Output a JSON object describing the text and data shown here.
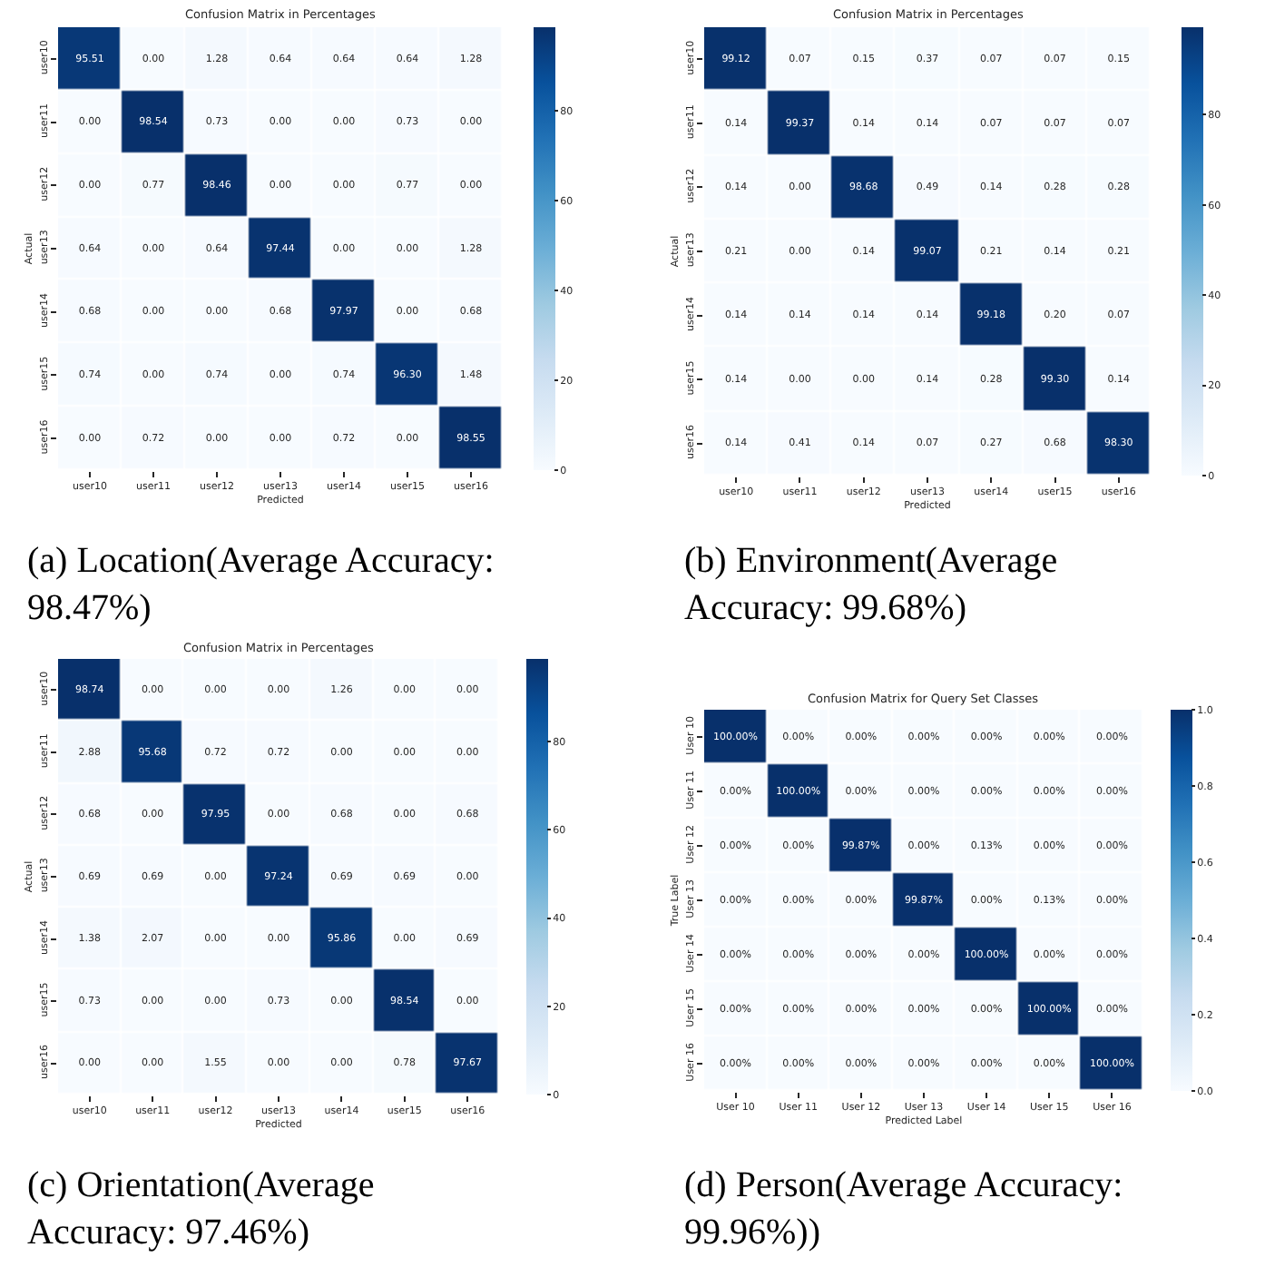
{
  "chart_data": [
    {
      "type": "heatmap",
      "title": "Confusion Matrix in Percentages",
      "xlabel": "Predicted",
      "ylabel": "Actual",
      "categories": [
        "user10",
        "user11",
        "user12",
        "user13",
        "user14",
        "user15",
        "user16"
      ],
      "y_categories": [
        "user10",
        "user11",
        "user12",
        "user13",
        "user14",
        "user15",
        "user16"
      ],
      "cells": [
        [
          95.51,
          0.0,
          1.28,
          0.64,
          0.64,
          0.64,
          1.28
        ],
        [
          0.0,
          98.54,
          0.73,
          0.0,
          0.0,
          0.73,
          0.0
        ],
        [
          0.0,
          0.77,
          98.46,
          0.0,
          0.0,
          0.77,
          0.0
        ],
        [
          0.64,
          0.0,
          0.64,
          97.44,
          0.0,
          0.0,
          1.28
        ],
        [
          0.68,
          0.0,
          0.0,
          0.68,
          97.97,
          0.0,
          0.68
        ],
        [
          0.74,
          0.0,
          0.74,
          0.0,
          0.74,
          96.3,
          1.48
        ],
        [
          0.0,
          0.72,
          0.0,
          0.0,
          0.72,
          0.0,
          98.55
        ]
      ],
      "cell_labels": [
        [
          "95.51",
          "0.00",
          "1.28",
          "0.64",
          "0.64",
          "0.64",
          "1.28"
        ],
        [
          "0.00",
          "98.54",
          "0.73",
          "0.00",
          "0.00",
          "0.73",
          "0.00"
        ],
        [
          "0.00",
          "0.77",
          "98.46",
          "0.00",
          "0.00",
          "0.77",
          "0.00"
        ],
        [
          "0.64",
          "0.00",
          "0.64",
          "97.44",
          "0.00",
          "0.00",
          "1.28"
        ],
        [
          "0.68",
          "0.00",
          "0.00",
          "0.68",
          "97.97",
          "0.00",
          "0.68"
        ],
        [
          "0.74",
          "0.00",
          "0.74",
          "0.00",
          "0.74",
          "96.30",
          "1.48"
        ],
        [
          "0.00",
          "0.72",
          "0.00",
          "0.00",
          "0.72",
          "0.00",
          "98.55"
        ]
      ],
      "clim": [
        0,
        98.55
      ],
      "cticks": [
        0,
        20,
        40,
        60,
        80
      ],
      "annotations": [
        "(a) Location(Average Accuracy: 98.47%)"
      ]
    },
    {
      "type": "heatmap",
      "title": "Confusion Matrix in Percentages",
      "xlabel": "Predicted",
      "ylabel": "Actual",
      "categories": [
        "user10",
        "user11",
        "user12",
        "user13",
        "user14",
        "user15",
        "user16"
      ],
      "y_categories": [
        "user10",
        "user11",
        "user12",
        "user13",
        "user14",
        "user15",
        "user16"
      ],
      "cells": [
        [
          99.12,
          0.07,
          0.15,
          0.37,
          0.07,
          0.07,
          0.15
        ],
        [
          0.14,
          99.37,
          0.14,
          0.14,
          0.07,
          0.07,
          0.07
        ],
        [
          0.14,
          0.0,
          98.68,
          0.49,
          0.14,
          0.28,
          0.28
        ],
        [
          0.21,
          0.0,
          0.14,
          99.07,
          0.21,
          0.14,
          0.21
        ],
        [
          0.14,
          0.14,
          0.14,
          0.14,
          99.18,
          0.2,
          0.07
        ],
        [
          0.14,
          0.0,
          0.0,
          0.14,
          0.28,
          99.3,
          0.14
        ],
        [
          0.14,
          0.41,
          0.14,
          0.07,
          0.27,
          0.68,
          98.3
        ]
      ],
      "cell_labels": [
        [
          "99.12",
          "0.07",
          "0.15",
          "0.37",
          "0.07",
          "0.07",
          "0.15"
        ],
        [
          "0.14",
          "99.37",
          "0.14",
          "0.14",
          "0.07",
          "0.07",
          "0.07"
        ],
        [
          "0.14",
          "0.00",
          "98.68",
          "0.49",
          "0.14",
          "0.28",
          "0.28"
        ],
        [
          "0.21",
          "0.00",
          "0.14",
          "99.07",
          "0.21",
          "0.14",
          "0.21"
        ],
        [
          "0.14",
          "0.14",
          "0.14",
          "0.14",
          "99.18",
          "0.20",
          "0.07"
        ],
        [
          "0.14",
          "0.00",
          "0.00",
          "0.14",
          "0.28",
          "99.30",
          "0.14"
        ],
        [
          "0.14",
          "0.41",
          "0.14",
          "0.07",
          "0.27",
          "0.68",
          "98.30"
        ]
      ],
      "clim": [
        0,
        99.37
      ],
      "cticks": [
        0,
        20,
        40,
        60,
        80
      ],
      "annotations": [
        "(b) Environment(Average Accuracy: 99.68%)"
      ]
    },
    {
      "type": "heatmap",
      "title": "Confusion Matrix in Percentages",
      "xlabel": "Predicted",
      "ylabel": "Actual",
      "categories": [
        "user10",
        "user11",
        "user12",
        "user13",
        "user14",
        "user15",
        "user16"
      ],
      "y_categories": [
        "user10",
        "user11",
        "user12",
        "user13",
        "user14",
        "user15",
        "user16"
      ],
      "cells": [
        [
          98.74,
          0.0,
          0.0,
          0.0,
          1.26,
          0.0,
          0.0
        ],
        [
          2.88,
          95.68,
          0.72,
          0.72,
          0.0,
          0.0,
          0.0
        ],
        [
          0.68,
          0.0,
          97.95,
          0.0,
          0.68,
          0.0,
          0.68
        ],
        [
          0.69,
          0.69,
          0.0,
          97.24,
          0.69,
          0.69,
          0.0
        ],
        [
          1.38,
          2.07,
          0.0,
          0.0,
          95.86,
          0.0,
          0.69
        ],
        [
          0.73,
          0.0,
          0.0,
          0.73,
          0.0,
          98.54,
          0.0
        ],
        [
          0.0,
          0.0,
          1.55,
          0.0,
          0.0,
          0.78,
          97.67
        ]
      ],
      "cell_labels": [
        [
          "98.74",
          "0.00",
          "0.00",
          "0.00",
          "1.26",
          "0.00",
          "0.00"
        ],
        [
          "2.88",
          "95.68",
          "0.72",
          "0.72",
          "0.00",
          "0.00",
          "0.00"
        ],
        [
          "0.68",
          "0.00",
          "97.95",
          "0.00",
          "0.68",
          "0.00",
          "0.68"
        ],
        [
          "0.69",
          "0.69",
          "0.00",
          "97.24",
          "0.69",
          "0.69",
          "0.00"
        ],
        [
          "1.38",
          "2.07",
          "0.00",
          "0.00",
          "95.86",
          "0.00",
          "0.69"
        ],
        [
          "0.73",
          "0.00",
          "0.00",
          "0.73",
          "0.00",
          "98.54",
          "0.00"
        ],
        [
          "0.00",
          "0.00",
          "1.55",
          "0.00",
          "0.00",
          "0.78",
          "97.67"
        ]
      ],
      "clim": [
        0,
        98.74
      ],
      "cticks": [
        0,
        20,
        40,
        60,
        80
      ],
      "annotations": [
        "(c) Orientation(Average Accuracy: 97.46%)"
      ]
    },
    {
      "type": "heatmap",
      "title": "Confusion Matrix for Query Set Classes",
      "xlabel": "Predicted Label",
      "ylabel": "True Label",
      "categories": [
        "User 10",
        "User 11",
        "User 12",
        "User 13",
        "User 14",
        "User 15",
        "User 16"
      ],
      "y_categories": [
        "User 10",
        "User 11",
        "User 12",
        "User 13",
        "User 14",
        "User 15",
        "User 16"
      ],
      "cells": [
        [
          1.0,
          0.0,
          0.0,
          0.0,
          0.0,
          0.0,
          0.0
        ],
        [
          0.0,
          1.0,
          0.0,
          0.0,
          0.0,
          0.0,
          0.0
        ],
        [
          0.0,
          0.0,
          0.9987,
          0.0,
          0.0013,
          0.0,
          0.0
        ],
        [
          0.0,
          0.0,
          0.0,
          0.9987,
          0.0,
          0.0013,
          0.0
        ],
        [
          0.0,
          0.0,
          0.0,
          0.0,
          1.0,
          0.0,
          0.0
        ],
        [
          0.0,
          0.0,
          0.0,
          0.0,
          0.0,
          1.0,
          0.0
        ],
        [
          0.0,
          0.0,
          0.0,
          0.0,
          0.0,
          0.0,
          1.0
        ]
      ],
      "cell_labels": [
        [
          "100.00%",
          "0.00%",
          "0.00%",
          "0.00%",
          "0.00%",
          "0.00%",
          "0.00%"
        ],
        [
          "0.00%",
          "100.00%",
          "0.00%",
          "0.00%",
          "0.00%",
          "0.00%",
          "0.00%"
        ],
        [
          "0.00%",
          "0.00%",
          "99.87%",
          "0.00%",
          "0.13%",
          "0.00%",
          "0.00%"
        ],
        [
          "0.00%",
          "0.00%",
          "0.00%",
          "99.87%",
          "0.00%",
          "0.13%",
          "0.00%"
        ],
        [
          "0.00%",
          "0.00%",
          "0.00%",
          "0.00%",
          "100.00%",
          "0.00%",
          "0.00%"
        ],
        [
          "0.00%",
          "0.00%",
          "0.00%",
          "0.00%",
          "0.00%",
          "100.00%",
          "0.00%"
        ],
        [
          "0.00%",
          "0.00%",
          "0.00%",
          "0.00%",
          "0.00%",
          "0.00%",
          "100.00%"
        ]
      ],
      "clim": [
        0,
        1.0
      ],
      "cticks": [
        {
          "value": 0,
          "label": "0.0"
        },
        0.2,
        0.4,
        0.6,
        0.8,
        {
          "value": 1.0,
          "label": "1.0"
        }
      ],
      "annotations": [
        "(d) Person(Average Accuracy: 99.96%))"
      ]
    }
  ]
}
